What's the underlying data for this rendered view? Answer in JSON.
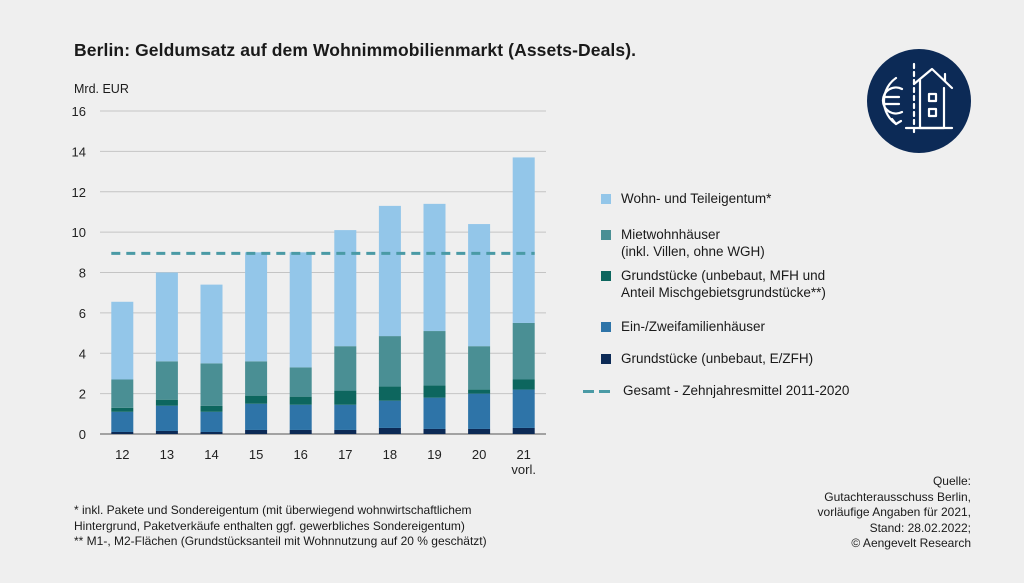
{
  "title": "Berlin: Geldumsatz auf dem Wohnimmobilienmarkt (Assets-Deals).",
  "colors": {
    "wohn_teileigentum": "#93c6e9",
    "mietwohnhaeuser": "#4a8f94",
    "grundstuecke_mfh": "#0d665e",
    "ein_zweifamilienhaeuser": "#2e74a8",
    "grundstuecke_ezfh": "#0c2a56",
    "average": "#4a9aa5",
    "logo_bg": "#0c2a56"
  },
  "chart_data": {
    "type": "bar",
    "stacked": true,
    "ylabel": "Mrd. EUR",
    "ylim": [
      0,
      16
    ],
    "yticks": [
      0,
      2,
      4,
      6,
      8,
      10,
      12,
      14,
      16
    ],
    "grid": true,
    "categories": [
      "12",
      "13",
      "14",
      "15",
      "16",
      "17",
      "18",
      "19",
      "20",
      "21"
    ],
    "category_sublabels": [
      "",
      "",
      "",
      "",
      "",
      "",
      "",
      "",
      "",
      "vorl."
    ],
    "series": [
      {
        "name": "Grundstücke (unbebaut, E/ZFH)",
        "key": "grundstuecke_ezfh",
        "values": [
          0.1,
          0.15,
          0.1,
          0.2,
          0.2,
          0.2,
          0.3,
          0.25,
          0.25,
          0.3
        ]
      },
      {
        "name": "Ein-/Zweifamilienhäuser",
        "key": "ein_zweifamilienhaeuser",
        "values": [
          1.0,
          1.25,
          1.0,
          1.3,
          1.25,
          1.25,
          1.35,
          1.55,
          1.75,
          1.9
        ]
      },
      {
        "name": "Grundstücke (unbebaut, MFH und Anteil Mischgebietsgrundstücke**)",
        "key": "grundstuecke_mfh",
        "values": [
          0.2,
          0.3,
          0.3,
          0.4,
          0.4,
          0.7,
          0.7,
          0.6,
          0.2,
          0.5
        ]
      },
      {
        "name": "Mietwohnhäuser (inkl. Villen, ohne WGH)",
        "key": "mietwohnhaeuser",
        "values": [
          1.4,
          1.9,
          2.1,
          1.7,
          1.45,
          2.2,
          2.5,
          2.7,
          2.15,
          2.8
        ]
      },
      {
        "name": "Wohn- und Teileigentum*",
        "key": "wohn_teileigentum",
        "values": [
          3.85,
          4.4,
          3.9,
          5.4,
          5.7,
          5.75,
          6.45,
          6.3,
          6.05,
          8.2
        ]
      }
    ],
    "average_line": {
      "name": "Gesamt - Zehnjahresmittel 2011-2020",
      "value": 8.95
    }
  },
  "legend": [
    {
      "lines": [
        "Wohn- und Teileigentum*"
      ],
      "color_key": "wohn_teileigentum",
      "kind": "swatch"
    },
    {
      "lines": [
        "Mietwohnhäuser",
        "(inkl. Villen, ohne WGH)"
      ],
      "color_key": "mietwohnhaeuser",
      "kind": "swatch"
    },
    {
      "lines": [
        "Grundstücke (unbebaut, MFH und",
        "Anteil Mischgebietsgrundstücke**)"
      ],
      "color_key": "grundstuecke_mfh",
      "kind": "swatch"
    },
    {
      "lines": [
        "Ein-/Zweifamilienhäuser"
      ],
      "color_key": "ein_zweifamilienhaeuser",
      "kind": "swatch"
    },
    {
      "lines": [
        "Grundstücke (unbebaut, E/ZFH)"
      ],
      "color_key": "grundstuecke_ezfh",
      "kind": "swatch"
    },
    {
      "lines": [
        "Gesamt - Zehnjahresmittel 2011-2020"
      ],
      "color_key": "average",
      "kind": "dash"
    }
  ],
  "footnotes": [
    "* inkl. Pakete und Sondereigentum (mit überwiegend wohnwirtschaftlichem",
    "Hintergrund, Paketverkäufe enthalten ggf. gewerbliches Sondereigentum)",
    "** M1-, M2-Flächen (Grundstücksanteil mit Wohnnutzung auf 20 % geschätzt)"
  ],
  "source": [
    "Quelle:",
    "Gutachterausschuss Berlin,",
    "vorläufige Angaben für 2021,",
    "Stand: 28.02.2022;",
    "© Aengevelt Research"
  ],
  "logo": {
    "icon": "euro-house-icon"
  }
}
